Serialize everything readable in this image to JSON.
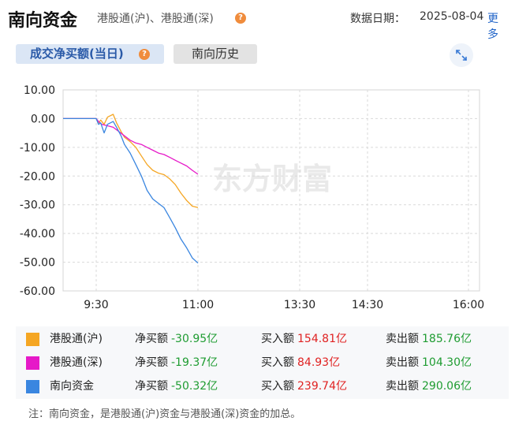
{
  "header": {
    "title": "南向资金",
    "subtitle": "港股通(沪)、港股通(深)",
    "date_label": "数据日期：",
    "date_value": "2025-08-04",
    "more": "更多"
  },
  "tabs": [
    {
      "label": "成交净买额(当日)",
      "active": true
    },
    {
      "label": "南向历史",
      "active": false
    }
  ],
  "icons": {
    "help": "question-circle-icon",
    "expand": "expand-arrows-icon"
  },
  "watermark": "东方财富",
  "chart_data": {
    "type": "line",
    "ylim": [
      -60,
      10
    ],
    "yticks": [
      "10.00",
      "0.00",
      "-10.00",
      "-20.00",
      "-30.00",
      "-40.00",
      "-50.00",
      "-60.00"
    ],
    "xticks": [
      "9:30",
      "11:00",
      "13:30",
      "14:30",
      "16:00"
    ],
    "grid": true,
    "series": [
      {
        "name": "港股通(沪)",
        "color": "#f5a623",
        "points": [
          [
            "09:00",
            0
          ],
          [
            "09:30",
            0
          ],
          [
            "09:32",
            -1.5
          ],
          [
            "09:34",
            -0.5
          ],
          [
            "09:37",
            -2
          ],
          [
            "09:40",
            0.5
          ],
          [
            "09:45",
            1.5
          ],
          [
            "09:48",
            -1.5
          ],
          [
            "09:52",
            -4.5
          ],
          [
            "09:55",
            -6.5
          ],
          [
            "10:00",
            -8
          ],
          [
            "10:05",
            -10
          ],
          [
            "10:10",
            -13
          ],
          [
            "10:15",
            -16
          ],
          [
            "10:20",
            -18
          ],
          [
            "10:25",
            -19
          ],
          [
            "10:30",
            -19.5
          ],
          [
            "10:35",
            -21
          ],
          [
            "10:40",
            -23
          ],
          [
            "10:45",
            -26
          ],
          [
            "10:50",
            -28.5
          ],
          [
            "10:55",
            -30.5
          ],
          [
            "11:00",
            -30.95
          ]
        ]
      },
      {
        "name": "港股通(深)",
        "color": "#e619c8",
        "points": [
          [
            "09:00",
            0
          ],
          [
            "09:30",
            0
          ],
          [
            "09:32",
            -1
          ],
          [
            "09:35",
            -2
          ],
          [
            "09:40",
            -2.5
          ],
          [
            "09:45",
            -3
          ],
          [
            "09:50",
            -4.5
          ],
          [
            "09:55",
            -6
          ],
          [
            "10:00",
            -7.5
          ],
          [
            "10:05",
            -8.5
          ],
          [
            "10:10",
            -9
          ],
          [
            "10:15",
            -10
          ],
          [
            "10:20",
            -11
          ],
          [
            "10:25",
            -12
          ],
          [
            "10:30",
            -12.5
          ],
          [
            "10:35",
            -13.5
          ],
          [
            "10:40",
            -14.5
          ],
          [
            "10:45",
            -15.5
          ],
          [
            "10:50",
            -16.5
          ],
          [
            "10:55",
            -18
          ],
          [
            "11:00",
            -19.37
          ]
        ]
      },
      {
        "name": "南向资金",
        "color": "#3a86e0",
        "points": [
          [
            "09:00",
            0
          ],
          [
            "09:30",
            0
          ],
          [
            "09:32",
            -2
          ],
          [
            "09:34",
            -1.5
          ],
          [
            "09:37",
            -5
          ],
          [
            "09:40",
            -2
          ],
          [
            "09:45",
            -1
          ],
          [
            "09:48",
            -3
          ],
          [
            "09:52",
            -6
          ],
          [
            "09:55",
            -9
          ],
          [
            "10:00",
            -12
          ],
          [
            "10:05",
            -16
          ],
          [
            "10:10",
            -20
          ],
          [
            "10:15",
            -25
          ],
          [
            "10:20",
            -28
          ],
          [
            "10:25",
            -29.5
          ],
          [
            "10:30",
            -31
          ],
          [
            "10:35",
            -34.5
          ],
          [
            "10:40",
            -38
          ],
          [
            "10:45",
            -42
          ],
          [
            "10:50",
            -45
          ],
          [
            "10:55",
            -48.5
          ],
          [
            "11:00",
            -50.32
          ]
        ]
      }
    ]
  },
  "legend": [
    {
      "name": "港股通(沪)",
      "color": "#f5a623",
      "net_label": "净买额",
      "net": "-30.95亿",
      "buy_label": "买入额",
      "buy": "154.81亿",
      "sell_label": "卖出额",
      "sell": "185.76亿"
    },
    {
      "name": "港股通(深)",
      "color": "#e619c8",
      "net_label": "净买额",
      "net": "-19.37亿",
      "buy_label": "买入额",
      "buy": "84.93亿",
      "sell_label": "卖出额",
      "sell": "104.30亿"
    },
    {
      "name": "南向资金",
      "color": "#3a86e0",
      "net_label": "净买额",
      "net": "-50.32亿",
      "buy_label": "买入额",
      "buy": "239.74亿",
      "sell_label": "卖出额",
      "sell": "290.06亿"
    }
  ],
  "note": "注：南向资金，是港股通(沪)资金与港股通(深)资金的加总。"
}
